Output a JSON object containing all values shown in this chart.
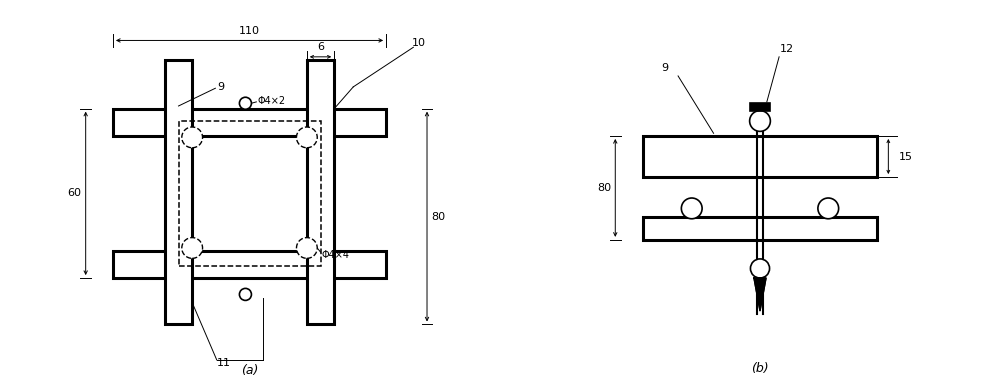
{
  "fig_width": 10.0,
  "fig_height": 3.84,
  "bg_color": "#ffffff",
  "line_color": "#000000",
  "lw_thick": 2.2,
  "lw_dim": 0.7,
  "font_size": 8,
  "label_a": "(a)",
  "label_b": "(b)",
  "dim_110": "110",
  "dim_60": "60",
  "dim_80": "80",
  "dim_6": "6",
  "dim_15": "15",
  "label_9a": "9",
  "label_10": "10",
  "label_11": "11",
  "label_phi4x2": "Φ4×2",
  "label_phi4x4": "Φ4×4",
  "label_9b": "9",
  "label_12": "12"
}
